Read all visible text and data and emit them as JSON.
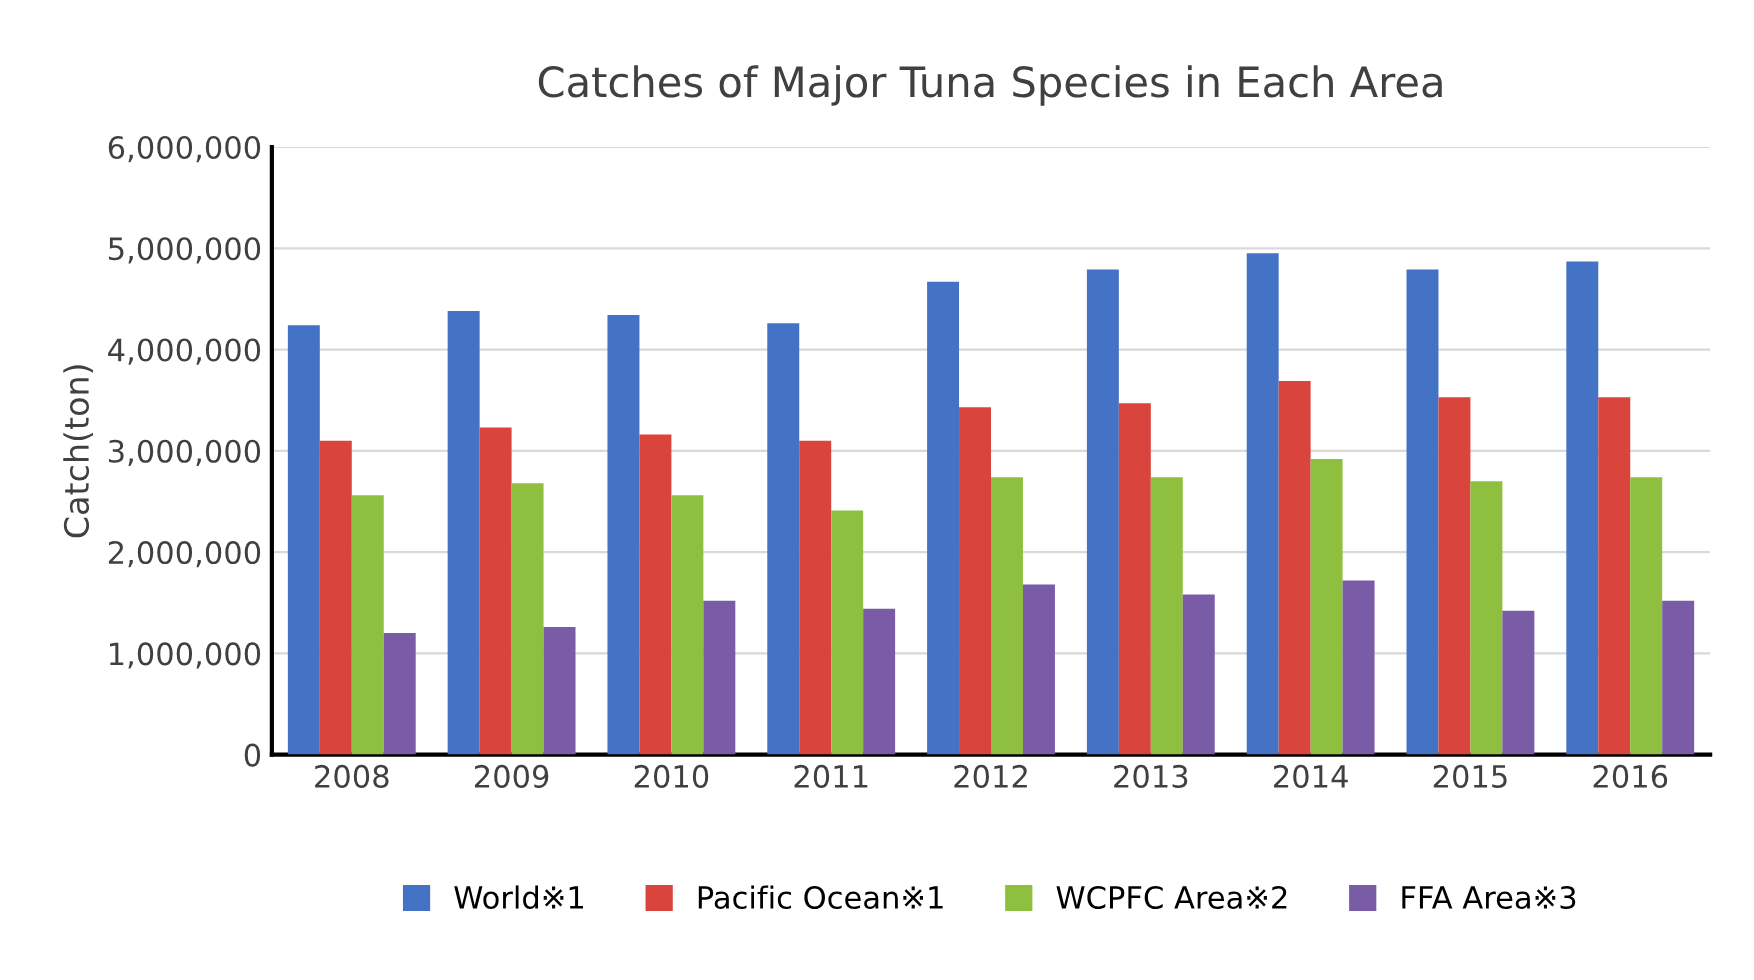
{
  "chart_data": {
    "type": "bar",
    "title": "Catches of Major Tuna Species in Each Area",
    "ylabel": "Catch(ton)",
    "categories": [
      "2008",
      "2009",
      "2010",
      "2011",
      "2012",
      "2013",
      "2014",
      "2015",
      "2016"
    ],
    "series": [
      {
        "name": "World※1",
        "color": "#4472c4",
        "values": [
          4240000,
          4380000,
          4340000,
          4260000,
          4670000,
          4790000,
          4950000,
          4790000,
          4870000
        ]
      },
      {
        "name": "Pacific Ocean※1",
        "color": "#d9443c",
        "values": [
          3100000,
          3230000,
          3160000,
          3100000,
          3430000,
          3470000,
          3690000,
          3530000,
          3530000
        ]
      },
      {
        "name": "WCPFC Area※2",
        "color": "#8fbf3f",
        "values": [
          2560000,
          2680000,
          2560000,
          2410000,
          2740000,
          2740000,
          2920000,
          2700000,
          2740000
        ]
      },
      {
        "name": "FFA Area※3",
        "color": "#7a5ba6",
        "values": [
          1200000,
          1260000,
          1520000,
          1440000,
          1680000,
          1580000,
          1720000,
          1420000,
          1520000
        ]
      }
    ],
    "ylim": [
      0,
      6000000
    ],
    "yticks": [
      {
        "value": 0,
        "label": "0"
      },
      {
        "value": 1000000,
        "label": "1,000,000"
      },
      {
        "value": 2000000,
        "label": "2,000,000"
      },
      {
        "value": 3000000,
        "label": "3,000,000"
      },
      {
        "value": 4000000,
        "label": "4,000,000"
      },
      {
        "value": 5000000,
        "label": "5,000,000"
      },
      {
        "value": 6000000,
        "label": "6,000,000"
      }
    ],
    "grid": "y",
    "legend": "bottom"
  }
}
